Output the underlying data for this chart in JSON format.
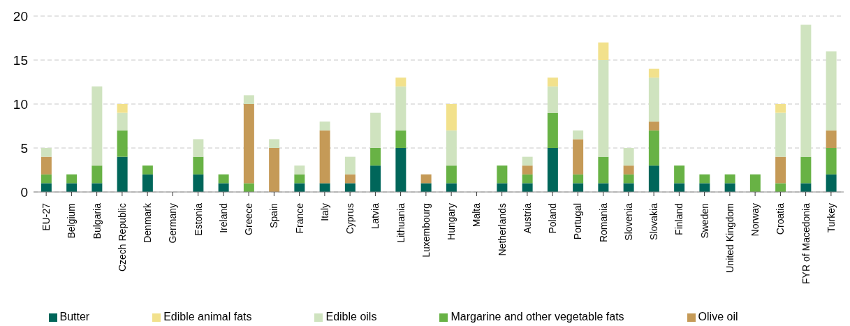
{
  "chart_data": {
    "type": "bar",
    "stacked": true,
    "categories": [
      "EU-27",
      "Belgium",
      "Bulgaria",
      "Czech Republic",
      "Denmark",
      "Germany",
      "Estonia",
      "Ireland",
      "Greece",
      "Spain",
      "France",
      "Italy",
      "Cyprus",
      "Latvia",
      "Lithuania",
      "Luxembourg",
      "Hungary",
      "Malta",
      "Netherlands",
      "Austria",
      "Poland",
      "Portugal",
      "Romania",
      "Slovenia",
      "Slovakia",
      "Finland",
      "Sweden",
      "United Kingdom",
      "Norway",
      "Croatia",
      "FYR of Macedonia",
      "Turkey"
    ],
    "series": [
      {
        "name": "Butter",
        "color": "#00665a",
        "values": [
          1,
          1,
          1,
          4,
          2,
          0,
          2,
          1,
          0,
          0,
          1,
          1,
          1,
          3,
          5,
          1,
          1,
          0,
          1,
          1,
          5,
          1,
          1,
          1,
          3,
          1,
          1,
          1,
          0,
          0,
          1,
          2
        ]
      },
      {
        "name": "Margarine and other vegetable fats",
        "color": "#68b245",
        "values": [
          1,
          1,
          2,
          3,
          1,
          0,
          2,
          1,
          1,
          0,
          1,
          0,
          0,
          2,
          2,
          0,
          2,
          0,
          2,
          1,
          4,
          1,
          3,
          1,
          4,
          2,
          1,
          1,
          2,
          1,
          3,
          3
        ]
      },
      {
        "name": "Olive oil",
        "color": "#c59a57",
        "values": [
          2,
          0,
          0,
          0,
          0,
          0,
          0,
          0,
          9,
          5,
          0,
          6,
          1,
          0,
          0,
          1,
          0,
          0,
          0,
          1,
          0,
          4,
          0,
          1,
          1,
          0,
          0,
          0,
          0,
          3,
          0,
          2
        ]
      },
      {
        "name": "Edible oils",
        "color": "#cfe3bf",
        "values": [
          1,
          0,
          9,
          2,
          0,
          0,
          2,
          0,
          1,
          1,
          1,
          1,
          2,
          4,
          5,
          0,
          4,
          0,
          0,
          1,
          3,
          1,
          11,
          2,
          5,
          0,
          0,
          0,
          0,
          5,
          15,
          9
        ]
      },
      {
        "name": "Edible animal fats",
        "color": "#f2e18c",
        "values": [
          0,
          0,
          0,
          1,
          0,
          0,
          0,
          0,
          0,
          0,
          0,
          0,
          0,
          0,
          1,
          0,
          3,
          0,
          0,
          0,
          1,
          0,
          2,
          0,
          1,
          0,
          0,
          0,
          0,
          1,
          0,
          0
        ]
      }
    ],
    "ylim": [
      0,
      20
    ],
    "yticks": [
      0,
      5,
      10,
      15,
      20
    ],
    "grid": "y",
    "legend": "bottom"
  }
}
